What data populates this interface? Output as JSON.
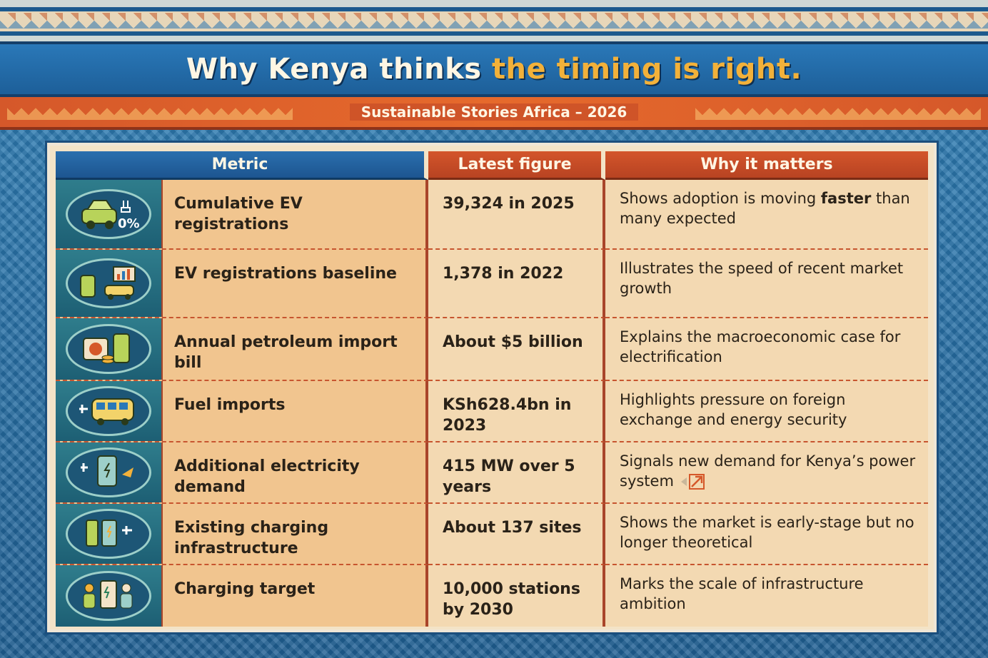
{
  "title": {
    "part1": "Why Kenya thinks ",
    "part2": "the timing is right."
  },
  "subtitle": "Sustainable Stories Africa – 2026",
  "table": {
    "headers": [
      "Metric",
      "Latest figure",
      "Why it matters"
    ],
    "rows": [
      {
        "icon": "electric-car-icon",
        "metric": "Cumulative EV registrations",
        "figure": "39,324 in 2025",
        "why_pre": "Shows adoption is moving ",
        "why_bold": "faster",
        "why_post": " than many expected"
      },
      {
        "icon": "ev-chart-icon",
        "metric": "EV registrations baseline",
        "figure": "1,378 in 2022",
        "why_pre": "Illustrates the speed of recent market growth",
        "why_bold": "",
        "why_post": ""
      },
      {
        "icon": "fuel-pump-icon",
        "metric": "Annual petroleum import bill",
        "figure": "About $5 billion",
        "why_pre": "Explains the macroeconomic case for electrification",
        "why_bold": "",
        "why_post": ""
      },
      {
        "icon": "electric-bus-icon",
        "metric": "Fuel imports",
        "figure": "KSh628.4bn in 2023",
        "why_pre": "Highlights pressure on foreign exchange and energy security",
        "why_bold": "",
        "why_post": ""
      },
      {
        "icon": "charger-plug-icon",
        "metric": "Additional electricity demand",
        "figure": "415 MW over 5 years",
        "why_pre": "Signals new demand for Kenya’s power system",
        "why_bold": "",
        "why_post": ""
      },
      {
        "icon": "charging-station-icon",
        "metric": "Existing charging infrastructure",
        "figure": "About 137 sites",
        "why_pre": "Shows the market is early-stage but no longer theoretical",
        "why_bold": "",
        "why_post": ""
      },
      {
        "icon": "people-charging-icon",
        "metric": "Charging target",
        "figure": "10,000 stations by 2030",
        "why_pre": "Marks the scale of infrastructure ambition",
        "why_bold": "",
        "why_post": ""
      }
    ]
  },
  "colors": {
    "blue": "#1d5f99",
    "orange": "#d5582a",
    "accent_gold": "#f2b13a",
    "cream": "#f3d9b2"
  }
}
